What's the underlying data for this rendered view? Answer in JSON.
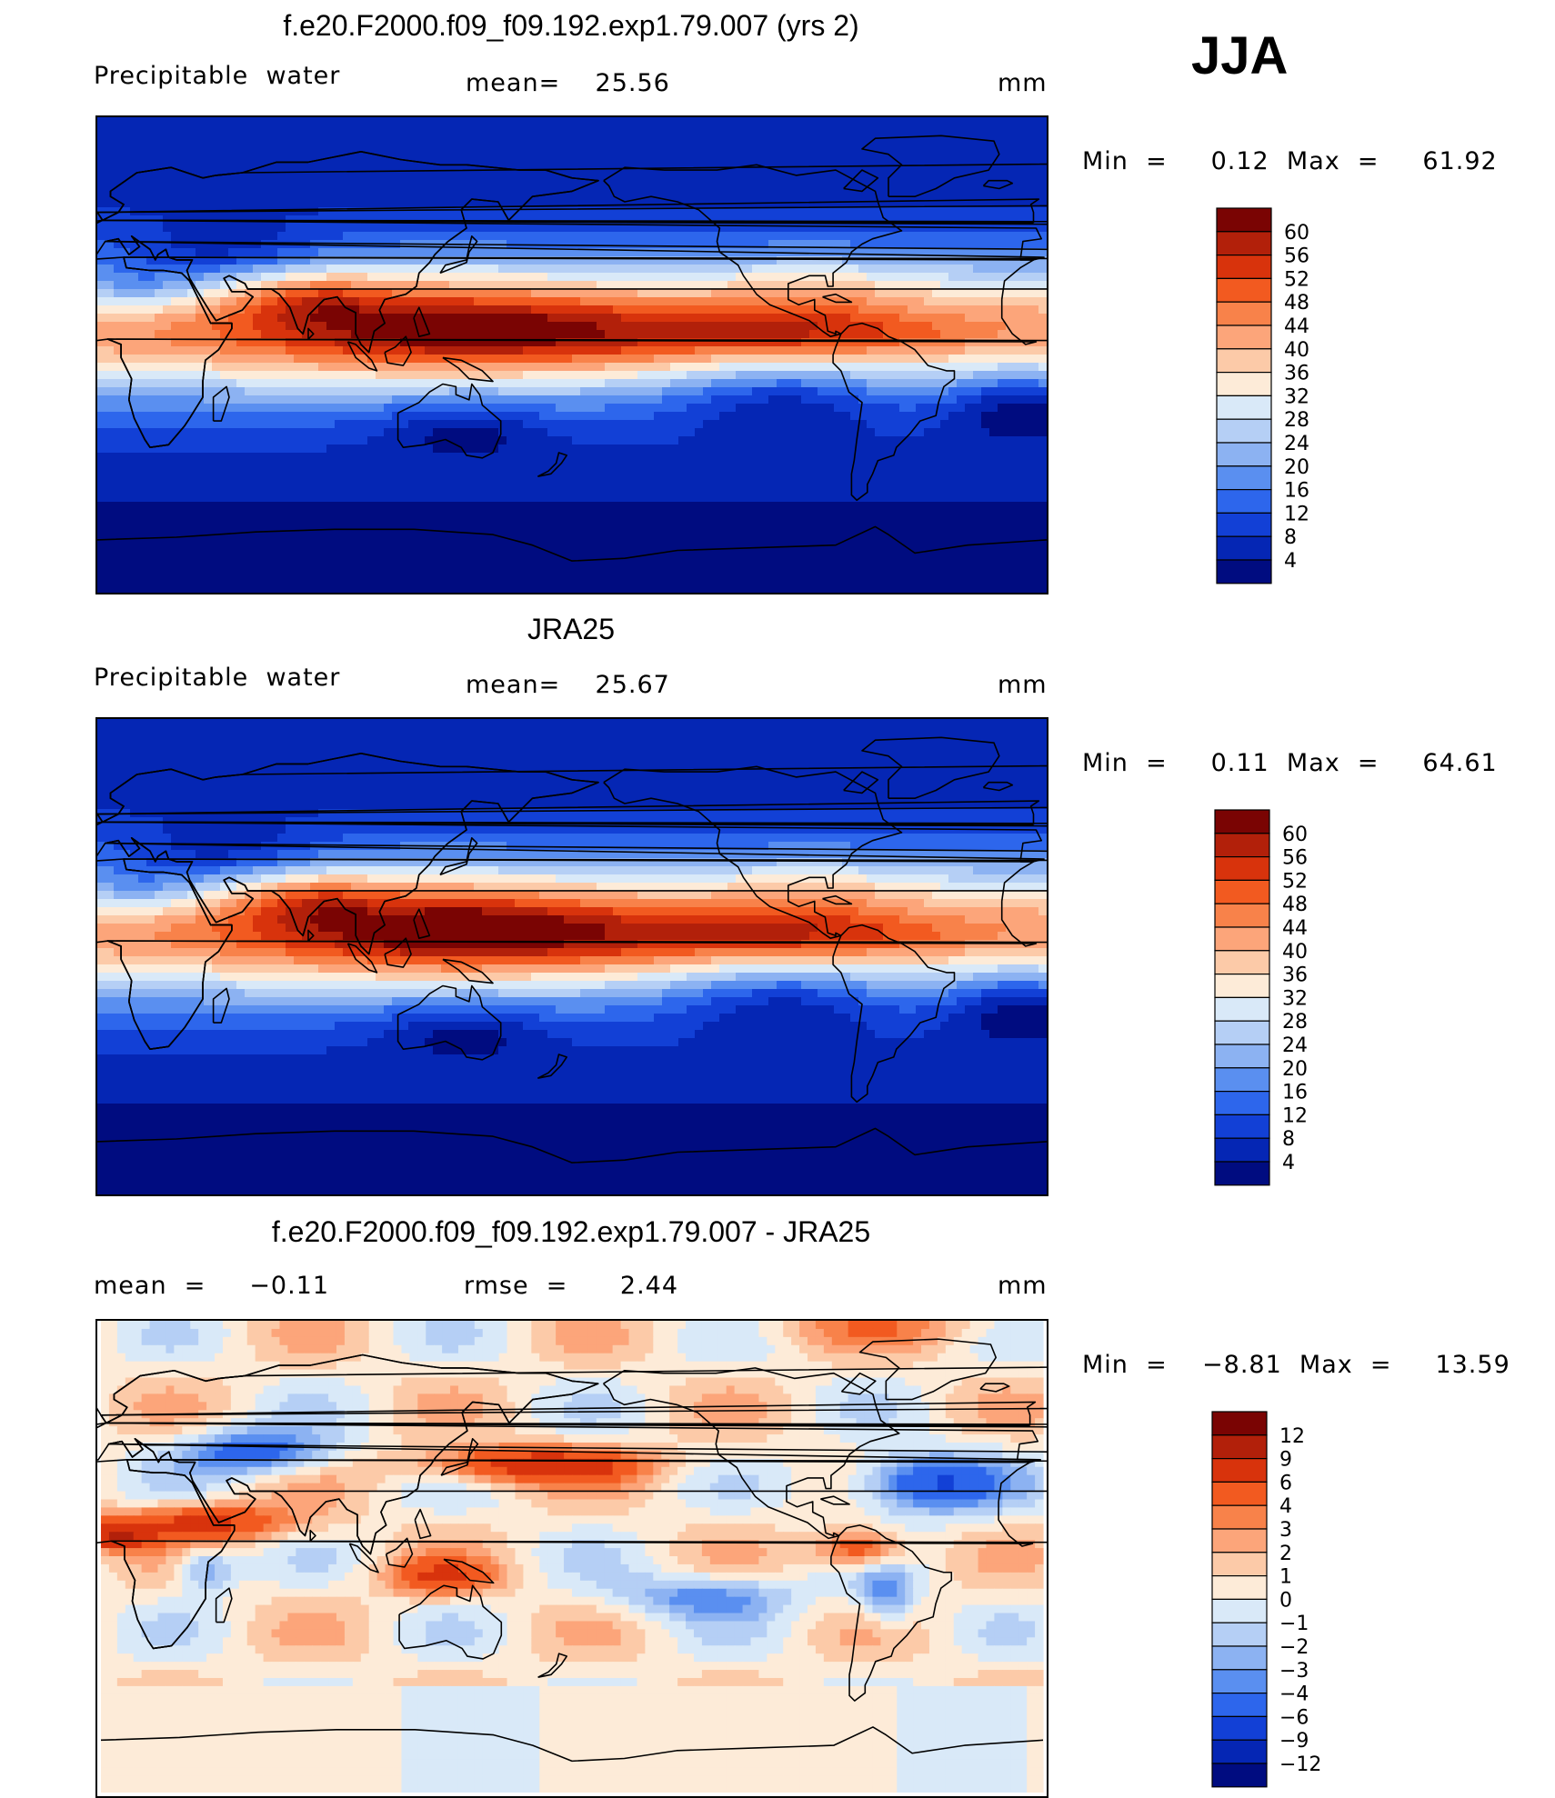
{
  "season": "JJA",
  "panels": [
    {
      "title": "f.e20.F2000.f09_f09.192.exp1.79.007 (yrs 2)",
      "left_label": "Precipitable  water",
      "mid_label": "mean=    25.56",
      "unit": "mm",
      "minmax": "Min  =     0.12  Max  =     61.92",
      "colorbar": {
        "levels": [
          "60",
          "56",
          "52",
          "48",
          "44",
          "40",
          "36",
          "32",
          "28",
          "24",
          "20",
          "16",
          "12",
          "8",
          "4"
        ],
        "colors": [
          "#7a0403",
          "#b2200a",
          "#d8330c",
          "#f25a20",
          "#f8824a",
          "#fca57a",
          "#fccaa8",
          "#fdebd8",
          "#d9e9f8",
          "#b5cff5",
          "#8cb2f2",
          "#5a8ff0",
          "#2d66ec",
          "#1240d6",
          "#0526b4",
          "#000c80"
        ]
      },
      "field": "abs"
    },
    {
      "title": "JRA25",
      "left_label": "Precipitable  water",
      "mid_label": "mean=    25.67",
      "unit": "mm",
      "minmax": "Min  =     0.11  Max  =     64.61",
      "colorbar": {
        "levels": [
          "60",
          "56",
          "52",
          "48",
          "44",
          "40",
          "36",
          "32",
          "28",
          "24",
          "20",
          "16",
          "12",
          "8",
          "4"
        ],
        "colors": [
          "#7a0403",
          "#b2200a",
          "#d8330c",
          "#f25a20",
          "#f8824a",
          "#fca57a",
          "#fccaa8",
          "#fdebd8",
          "#d9e9f8",
          "#b5cff5",
          "#8cb2f2",
          "#5a8ff0",
          "#2d66ec",
          "#1240d6",
          "#0526b4",
          "#000c80"
        ]
      },
      "field": "abs"
    },
    {
      "title": "f.e20.F2000.f09_f09.192.exp1.79.007 - JRA25",
      "left_label": "mean  =     −0.11",
      "mid_label": "rmse  =      2.44",
      "unit": "mm",
      "minmax": "Min  =    −8.81  Max  =     13.59",
      "colorbar": {
        "levels": [
          "12",
          "9",
          "6",
          "4",
          "3",
          "2",
          "1",
          "0",
          "−1",
          "−2",
          "−3",
          "−4",
          "−6",
          "−9",
          "−12"
        ],
        "colors": [
          "#7a0403",
          "#b2200a",
          "#d8330c",
          "#f25a20",
          "#f8824a",
          "#fca57a",
          "#fccaa8",
          "#fdebd8",
          "#d9e9f8",
          "#b5cff5",
          "#8cb2f2",
          "#5a8ff0",
          "#2d66ec",
          "#1240d6",
          "#0526b4",
          "#000c80"
        ]
      },
      "field": "diff"
    }
  ]
}
